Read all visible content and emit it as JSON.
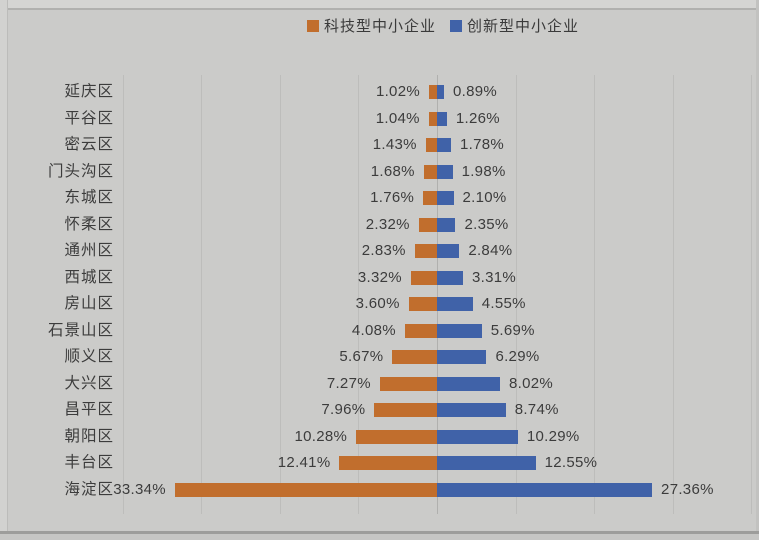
{
  "chart_data": {
    "type": "bar",
    "variant": "diverging-horizontal",
    "title": "",
    "legend": {
      "position": "top-center",
      "items": [
        {
          "label": "科技型中小企业",
          "color": "#c16e2d"
        },
        {
          "label": "创新型中小企业",
          "color": "#4062a8"
        }
      ]
    },
    "categories": [
      "延庆区",
      "平谷区",
      "密云区",
      "门头沟区",
      "东城区",
      "怀柔区",
      "通州区",
      "西城区",
      "房山区",
      "石景山区",
      "顺义区",
      "大兴区",
      "昌平区",
      "朝阳区",
      "丰台区",
      "海淀区"
    ],
    "series": [
      {
        "name": "科技型中小企业",
        "side": "left",
        "color": "#c16e2d",
        "values": [
          1.02,
          1.04,
          1.43,
          1.68,
          1.76,
          2.32,
          2.83,
          3.32,
          3.6,
          4.08,
          5.67,
          7.27,
          7.96,
          10.28,
          12.41,
          33.34
        ],
        "labels": [
          "1.02%",
          "1.04%",
          "1.43%",
          "1.68%",
          "1.76%",
          "2.32%",
          "2.83%",
          "3.32%",
          "3.60%",
          "4.08%",
          "5.67%",
          "7.27%",
          "7.96%",
          "10.28%",
          "12.41%",
          "33.34%"
        ]
      },
      {
        "name": "创新型中小企业",
        "side": "right",
        "color": "#4062a8",
        "values": [
          0.89,
          1.26,
          1.78,
          1.98,
          2.1,
          2.35,
          2.84,
          3.31,
          4.55,
          5.69,
          6.29,
          8.02,
          8.74,
          10.29,
          12.55,
          27.36
        ],
        "labels": [
          "0.89%",
          "1.26%",
          "1.78%",
          "1.98%",
          "2.10%",
          "2.35%",
          "2.84%",
          "3.31%",
          "4.55%",
          "5.69%",
          "6.29%",
          "8.02%",
          "8.74%",
          "10.29%",
          "12.55%",
          "27.36%"
        ]
      }
    ],
    "axis": {
      "unit": "%",
      "grid_interval_percent": 10,
      "left_extent_percent": 40,
      "right_extent_percent": 40,
      "grid_visible": true,
      "value_labels_visible": true
    }
  },
  "colors": {
    "background": "#cbcbc9",
    "gridline": "#bdbdbb",
    "center_axis": "#b0b0ae",
    "text": "#3c3c3c"
  }
}
